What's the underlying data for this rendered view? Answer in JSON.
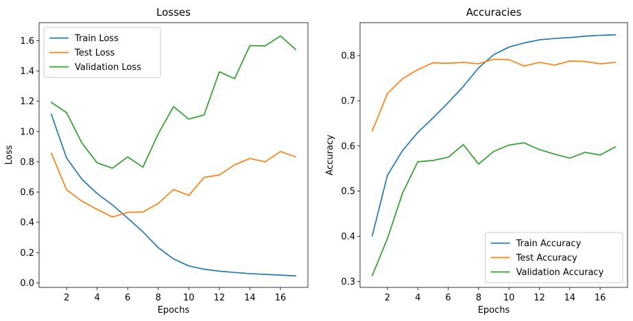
{
  "chart_data": [
    {
      "type": "line",
      "title": "Losses",
      "xlabel": "Epochs",
      "ylabel": "Loss",
      "xlim": [
        0.2,
        17.8
      ],
      "ylim": [
        -0.03,
        1.72
      ],
      "xticks": [
        2,
        4,
        6,
        8,
        10,
        12,
        14,
        16
      ],
      "yticks": [
        0.0,
        0.2,
        0.4,
        0.6,
        0.8,
        1.0,
        1.2,
        1.4,
        1.6
      ],
      "ytick_labels": [
        "0.0",
        "0.2",
        "0.4",
        "0.6",
        "0.8",
        "1.0",
        "1.2",
        "1.4",
        "1.6"
      ],
      "legend_position": "top-left",
      "x": [
        1,
        2,
        3,
        4,
        5,
        6,
        7,
        8,
        9,
        10,
        11,
        12,
        13,
        14,
        15,
        16,
        17
      ],
      "series": [
        {
          "name": "Train Loss",
          "color": "#1f77b4",
          "values": [
            1.115,
            0.825,
            0.685,
            0.59,
            0.515,
            0.428,
            0.337,
            0.233,
            0.158,
            0.112,
            0.09,
            0.077,
            0.069,
            0.061,
            0.056,
            0.051,
            0.046
          ]
        },
        {
          "name": "Test Loss",
          "color": "#ff7f0e",
          "values": [
            0.857,
            0.615,
            0.54,
            0.486,
            0.435,
            0.466,
            0.468,
            0.525,
            0.617,
            0.578,
            0.697,
            0.713,
            0.78,
            0.822,
            0.8,
            0.868,
            0.832
          ]
        },
        {
          "name": "Validation Loss",
          "color": "#2ca02c",
          "values": [
            1.193,
            1.125,
            0.925,
            0.793,
            0.758,
            0.832,
            0.765,
            0.985,
            1.165,
            1.082,
            1.11,
            1.395,
            1.35,
            1.568,
            1.566,
            1.632,
            1.542
          ]
        }
      ]
    },
    {
      "type": "line",
      "title": "Accuracies",
      "xlabel": "Epochs",
      "ylabel": "Accuracy",
      "xlim": [
        0.2,
        17.8
      ],
      "ylim": [
        0.287,
        0.873
      ],
      "xticks": [
        2,
        4,
        6,
        8,
        10,
        12,
        14,
        16
      ],
      "yticks": [
        0.3,
        0.4,
        0.5,
        0.6,
        0.7,
        0.8
      ],
      "ytick_labels": [
        "0.3",
        "0.4",
        "0.5",
        "0.6",
        "0.7",
        "0.8"
      ],
      "legend_position": "bottom-right",
      "x": [
        1,
        2,
        3,
        4,
        5,
        6,
        7,
        8,
        9,
        10,
        11,
        12,
        13,
        14,
        15,
        16,
        17
      ],
      "series": [
        {
          "name": "Train Accuracy",
          "color": "#1f77b4",
          "values": [
            0.401,
            0.535,
            0.59,
            0.63,
            0.662,
            0.696,
            0.732,
            0.773,
            0.802,
            0.819,
            0.828,
            0.835,
            0.838,
            0.84,
            0.843,
            0.845,
            0.846
          ]
        },
        {
          "name": "Test Accuracy",
          "color": "#ff7f0e",
          "values": [
            0.633,
            0.716,
            0.749,
            0.769,
            0.784,
            0.783,
            0.785,
            0.782,
            0.792,
            0.791,
            0.777,
            0.785,
            0.779,
            0.788,
            0.787,
            0.782,
            0.785
          ]
        },
        {
          "name": "Validation Accuracy",
          "color": "#2ca02c",
          "values": [
            0.313,
            0.395,
            0.496,
            0.565,
            0.568,
            0.575,
            0.603,
            0.56,
            0.588,
            0.602,
            0.607,
            0.592,
            0.582,
            0.573,
            0.586,
            0.58,
            0.598
          ]
        }
      ]
    }
  ]
}
